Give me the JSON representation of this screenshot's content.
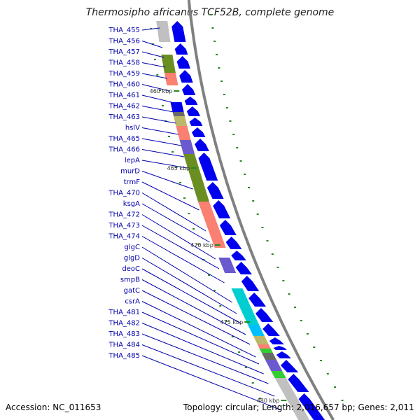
{
  "title": "Thermosipho africanus TCF52B, complete genome",
  "footer": {
    "accession": "Accession: NC_011653",
    "summary": "Topology: circular; Length: 2,016,657 bp; Genes: 2,011"
  },
  "colors": {
    "forward_cds": "#0000ee",
    "reverse_gray": "#c0c0c0",
    "backbone": "#808080",
    "skew_marks": "#228b22",
    "label_text": "#0000aa",
    "cog_colors": [
      "#6b8e23",
      "#fa8072",
      "#6a5acd",
      "#bdb76b",
      "#00ced1",
      "#00bfff",
      "#32cd32",
      "#696969",
      "#1e90ff"
    ]
  },
  "gene_labels": [
    "THA_455",
    "THA_456",
    "THA_457",
    "THA_458",
    "THA_459",
    "THA_460",
    "THA_461",
    "THA_462",
    "THA_463",
    "hslV",
    "THA_465",
    "THA_466",
    "lepA",
    "murD",
    "trmF",
    "THA_470",
    "ksgA",
    "THA_472",
    "THA_473",
    "THA_474",
    "glgC",
    "glgD",
    "deoC",
    "smpB",
    "gatC",
    "csrA",
    "THA_481",
    "THA_482",
    "THA_483",
    "THA_484",
    "THA_485"
  ],
  "kbp_ticks": [
    "460 kbp",
    "465 kbp",
    "470 kbp",
    "475 kbp",
    "480 kbp"
  ]
}
